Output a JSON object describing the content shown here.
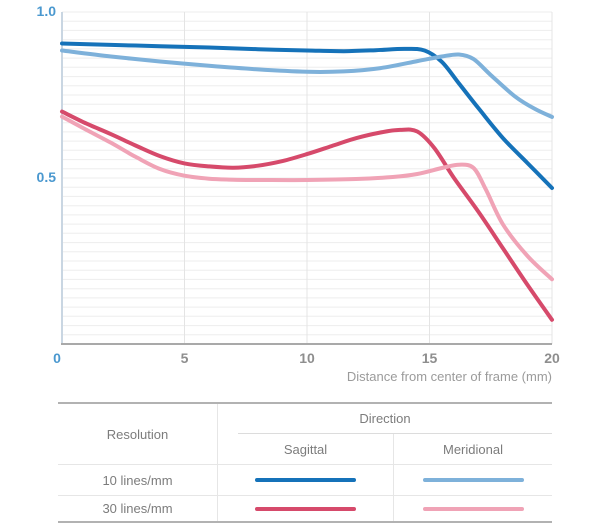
{
  "chart": {
    "x_axis_label": "Distance from center of frame (mm)"
  },
  "chart_data": {
    "type": "line",
    "title": "",
    "xlabel": "Distance from center of frame (mm)",
    "ylabel": "",
    "xlim": [
      0,
      20
    ],
    "ylim": [
      0,
      1.0
    ],
    "grid": true,
    "legend_position": "bottom-table",
    "x_ticks": [
      {
        "label": "0",
        "value": 0,
        "color": "#4a98cf"
      },
      {
        "label": "5",
        "value": 5,
        "color": "#8e8e8e"
      },
      {
        "label": "10",
        "value": 10,
        "color": "#8e8e8e"
      },
      {
        "label": "15",
        "value": 15,
        "color": "#8e8e8e"
      },
      {
        "label": "20",
        "value": 20,
        "color": "#8e8e8e"
      }
    ],
    "y_ticks": [
      {
        "label": "1.0",
        "value": 1.0,
        "color": "#4a98cf"
      },
      {
        "label": "0.5",
        "value": 0.5,
        "color": "#4a98cf"
      }
    ],
    "series": [
      {
        "name": "10 lines/mm Sagittal",
        "color": "#1572b9",
        "points": [
          [
            0,
            0.905
          ],
          [
            2,
            0.901
          ],
          [
            4,
            0.897
          ],
          [
            6,
            0.893
          ],
          [
            8,
            0.888
          ],
          [
            10,
            0.884
          ],
          [
            11.5,
            0.882
          ],
          [
            12.8,
            0.885
          ],
          [
            14,
            0.889
          ],
          [
            14.8,
            0.884
          ],
          [
            15.5,
            0.85
          ],
          [
            16.2,
            0.785
          ],
          [
            17,
            0.71
          ],
          [
            18,
            0.62
          ],
          [
            19,
            0.545
          ],
          [
            20,
            0.47
          ]
        ]
      },
      {
        "name": "10 lines/mm Meridional",
        "color": "#7eb1da",
        "points": [
          [
            0,
            0.884
          ],
          [
            2,
            0.866
          ],
          [
            4,
            0.851
          ],
          [
            6,
            0.838
          ],
          [
            8,
            0.827
          ],
          [
            10,
            0.82
          ],
          [
            11.5,
            0.821
          ],
          [
            13,
            0.831
          ],
          [
            14.5,
            0.852
          ],
          [
            15.5,
            0.866
          ],
          [
            16.2,
            0.872
          ],
          [
            16.8,
            0.858
          ],
          [
            17.5,
            0.81
          ],
          [
            18.5,
            0.745
          ],
          [
            19.3,
            0.708
          ],
          [
            20,
            0.684
          ]
        ]
      },
      {
        "name": "30 lines/mm Sagittal",
        "color": "#d64a6b",
        "points": [
          [
            0,
            0.7
          ],
          [
            1,
            0.664
          ],
          [
            2,
            0.632
          ],
          [
            3,
            0.598
          ],
          [
            4,
            0.566
          ],
          [
            5,
            0.544
          ],
          [
            6,
            0.535
          ],
          [
            7,
            0.531
          ],
          [
            8,
            0.537
          ],
          [
            9,
            0.551
          ],
          [
            10,
            0.572
          ],
          [
            11,
            0.596
          ],
          [
            12,
            0.62
          ],
          [
            13,
            0.637
          ],
          [
            13.8,
            0.645
          ],
          [
            14.5,
            0.64
          ],
          [
            15.2,
            0.59
          ],
          [
            16,
            0.5
          ],
          [
            17,
            0.398
          ],
          [
            18,
            0.288
          ],
          [
            19,
            0.178
          ],
          [
            20,
            0.073
          ]
        ]
      },
      {
        "name": "30 lines/mm Meridional",
        "color": "#f0a3b6",
        "points": [
          [
            0,
            0.685
          ],
          [
            1,
            0.645
          ],
          [
            2,
            0.606
          ],
          [
            3,
            0.564
          ],
          [
            4,
            0.527
          ],
          [
            5,
            0.507
          ],
          [
            6,
            0.498
          ],
          [
            7,
            0.495
          ],
          [
            8,
            0.494
          ],
          [
            10,
            0.494
          ],
          [
            12,
            0.497
          ],
          [
            13.5,
            0.503
          ],
          [
            14.5,
            0.512
          ],
          [
            15.5,
            0.53
          ],
          [
            16.2,
            0.54
          ],
          [
            16.8,
            0.53
          ],
          [
            17.3,
            0.465
          ],
          [
            18,
            0.36
          ],
          [
            19,
            0.265
          ],
          [
            20,
            0.195
          ]
        ]
      }
    ]
  },
  "table": {
    "resolution_header": "Resolution",
    "direction_header": "Direction",
    "columns": [
      "Sagittal",
      "Meridional"
    ],
    "rows": [
      {
        "resolution": "10 lines/mm",
        "sagittal_color": "#1572b9",
        "meridional_color": "#7eb1da"
      },
      {
        "resolution": "30 lines/mm",
        "sagittal_color": "#d64a6b",
        "meridional_color": "#f0a3b6"
      }
    ]
  },
  "colors": {
    "axis_label_blue": "#4a98cf",
    "tick_gray": "#8e8e8e",
    "caption_gray": "#9b9b9b",
    "grid_line": "#ededed",
    "grid_line_vertical": "#e4e4e4",
    "left_axis": "#c9d6e2",
    "bottom_axis": "#a9a9a9",
    "table_border": "#b2b2b2",
    "table_inner_border": "#e6e6e6"
  }
}
